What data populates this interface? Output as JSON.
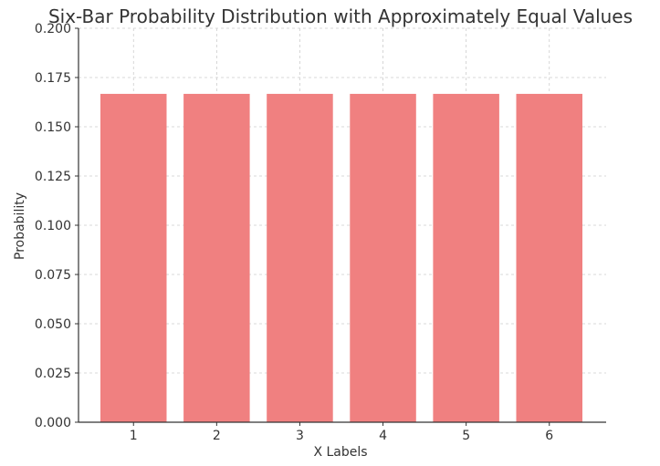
{
  "chart_data": {
    "type": "bar",
    "title": "Six-Bar Probability Distribution with Approximately Equal Values",
    "xlabel": "X Labels",
    "ylabel": "Probability",
    "categories": [
      "1",
      "2",
      "3",
      "4",
      "5",
      "6"
    ],
    "values": [
      0.1667,
      0.1667,
      0.1667,
      0.1667,
      0.1667,
      0.1667
    ],
    "ylim": [
      0,
      0.2
    ],
    "yticks": [
      "0.000",
      "0.025",
      "0.050",
      "0.075",
      "0.100",
      "0.125",
      "0.150",
      "0.175",
      "0.200"
    ],
    "grid": true,
    "bar_color": "#f08080"
  }
}
